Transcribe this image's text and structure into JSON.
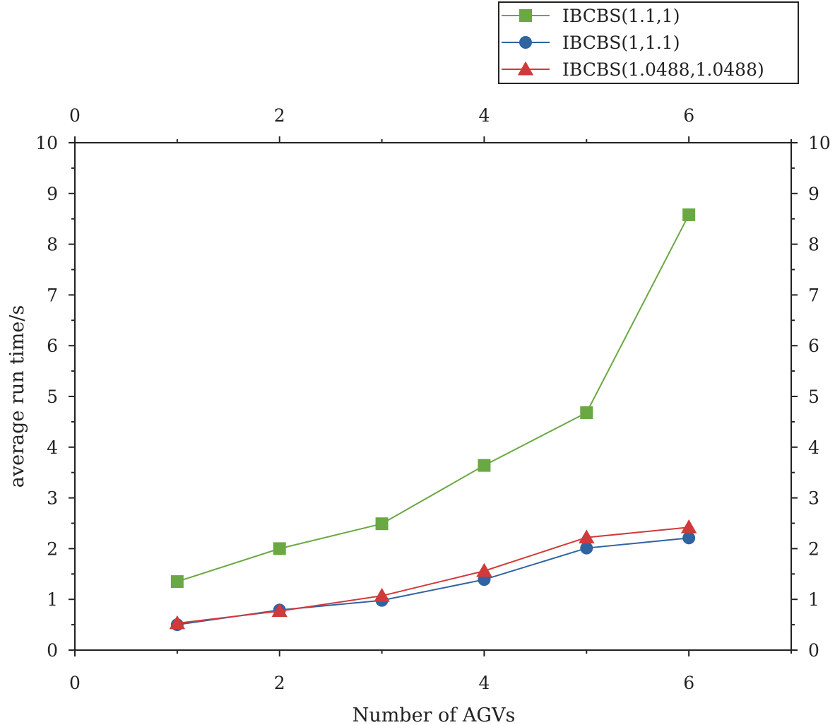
{
  "chart_data": {
    "type": "line",
    "title": "",
    "xlabel": "Number of AGVs",
    "ylabel": "average run time/s",
    "xlim": [
      0,
      7
    ],
    "ylim": [
      0,
      10
    ],
    "x_major_ticks": [
      0,
      2,
      4,
      6
    ],
    "x_minor_ticks": [
      1,
      3,
      5,
      7
    ],
    "y_major_ticks": [
      0,
      1,
      2,
      3,
      4,
      5,
      6,
      7,
      8,
      9,
      10
    ],
    "x_tick_labels": [
      "0",
      "2",
      "4",
      "6"
    ],
    "y_tick_labels": [
      "0",
      "1",
      "2",
      "3",
      "4",
      "5",
      "6",
      "7",
      "8",
      "9",
      "10"
    ],
    "grid": false,
    "legend_position": "top-right, outside above plot",
    "mirror_axes": true,
    "series": [
      {
        "name": "IBCBS(1.1,1)",
        "marker": "square",
        "color": "#6aa843",
        "x": [
          1,
          2,
          3,
          4,
          5,
          6
        ],
        "values": [
          1.35,
          2.0,
          2.49,
          3.64,
          4.68,
          8.58
        ]
      },
      {
        "name": "IBCBS(1,1.1)",
        "marker": "circle",
        "color": "#2f64a0",
        "x": [
          1,
          2,
          3,
          4,
          5,
          6
        ],
        "values": [
          0.5,
          0.79,
          0.98,
          1.39,
          2.01,
          2.21
        ]
      },
      {
        "name": "IBCBS(1.0488,1.0488)",
        "marker": "triangle",
        "color": "#d03a3a",
        "x": [
          1,
          2,
          3,
          4,
          5,
          6
        ],
        "values": [
          0.53,
          0.77,
          1.07,
          1.56,
          2.22,
          2.42
        ]
      }
    ]
  },
  "legend": {
    "labels": [
      "IBCBS(1.1,1)",
      "IBCBS(1,1.1)",
      "IBCBS(1.0488,1.0488)"
    ]
  }
}
